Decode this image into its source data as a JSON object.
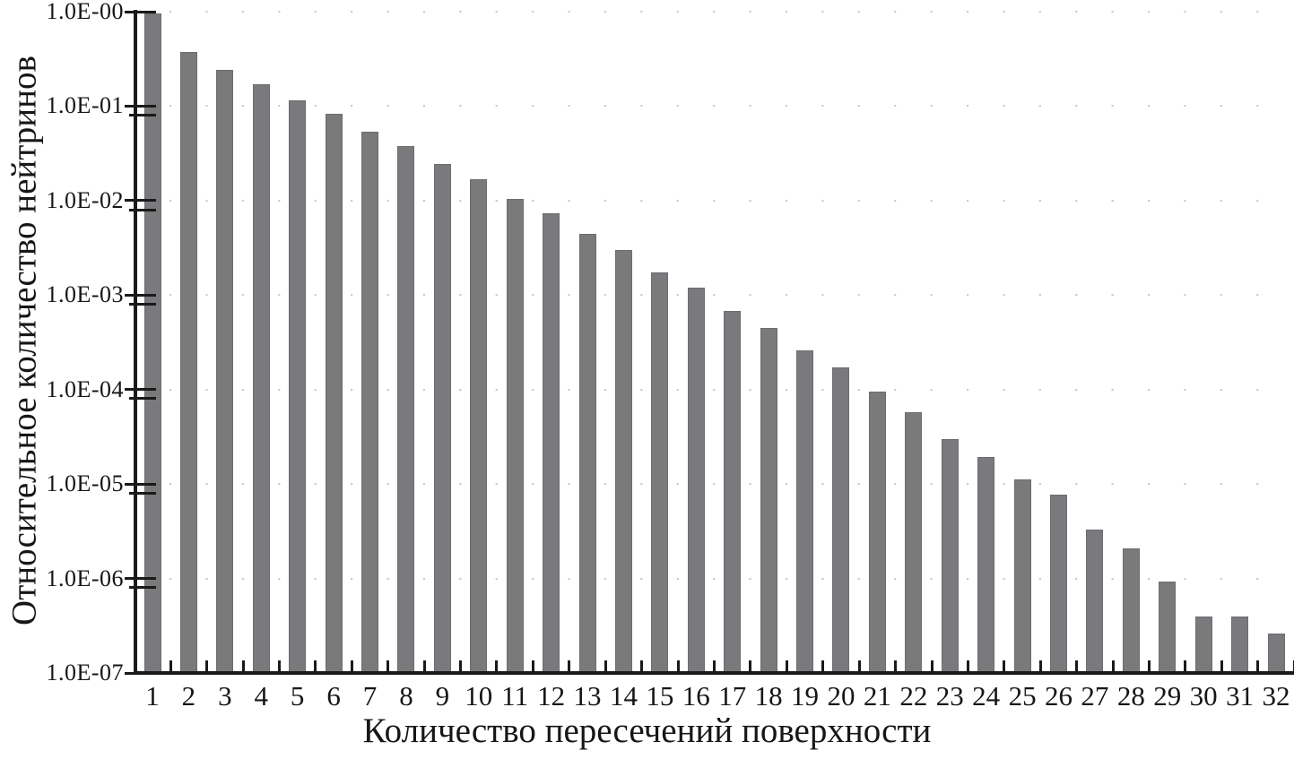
{
  "figure": {
    "kind": "scientific bar chart, log y-axis",
    "background": "#ffffff",
    "text_color": "#161616"
  },
  "chart_data": {
    "type": "bar",
    "title": "",
    "xlabel": "Количество пересечений поверхности",
    "ylabel": "Относительное количество нейтринов",
    "yscale": "log",
    "ylim": [
      1e-07,
      1
    ],
    "ytick_labels": [
      "1.0E-00",
      "1.0E-01",
      "1.0E-02",
      "1.0E-03",
      "1.0E-04",
      "1.0E-05",
      "1.0E-06",
      "1.0E-07"
    ],
    "categories": [
      "1",
      "2",
      "3",
      "4",
      "5",
      "6",
      "7",
      "8",
      "9",
      "10",
      "11",
      "12",
      "13",
      "14",
      "15",
      "16",
      "17",
      "18",
      "19",
      "20",
      "21",
      "22",
      "23",
      "24",
      "25",
      "26",
      "27",
      "28",
      "29",
      "30",
      "31",
      "32"
    ],
    "values": [
      0.95,
      0.375,
      0.24,
      0.17,
      0.115,
      0.083,
      0.054,
      0.0375,
      0.0245,
      0.017,
      0.0105,
      0.0073,
      0.0044,
      0.003,
      0.00175,
      0.0012,
      0.00068,
      0.00045,
      0.00026,
      0.00017,
      9.5e-05,
      5.75e-05,
      3e-05,
      1.95e-05,
      1.12e-05,
      7.8e-06,
      3.3e-06,
      2.1e-06,
      9.2e-07,
      4e-07,
      4e-07,
      2.6e-07
    ],
    "bar_color": "#7a7a7d",
    "grid": "faint dotted horizontal lines at each decade",
    "legend": "none"
  }
}
